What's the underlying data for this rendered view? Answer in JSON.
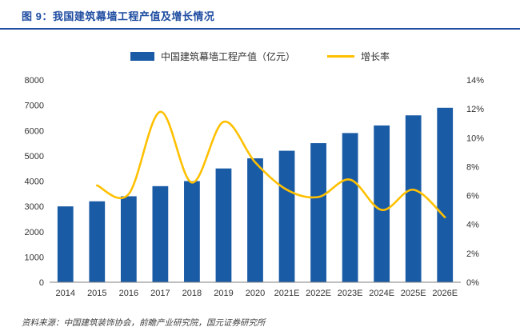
{
  "page": {
    "title": "图 9：我国建筑幕墙工程产值及增长情况",
    "source_note": "资料来源：中国建筑装饰协会，前瞻产业研究院，国元证券研究所"
  },
  "colors": {
    "title_blue": "#1F4DA1",
    "bar_blue": "#1A5BA6",
    "line_yellow": "#FFC000",
    "axis_text": "#333333",
    "axis_line": "#7F7F7F"
  },
  "legend": {
    "bar_label": "中国建筑幕墙工程产值（亿元）",
    "line_label": "增长率"
  },
  "chart_data": {
    "type": "combo",
    "categories": [
      "2014",
      "2015",
      "2016",
      "2017",
      "2018",
      "2019",
      "2020",
      "2021E",
      "2022E",
      "2023E",
      "2024E",
      "2025E",
      "2026E"
    ],
    "series": [
      {
        "name": "中国建筑幕墙工程产值（亿元）",
        "type": "bar",
        "axis": "left",
        "color": "#1A5BA6",
        "values": [
          3000,
          3200,
          3400,
          3800,
          4000,
          4500,
          4900,
          5200,
          5500,
          5900,
          6200,
          6600,
          6900
        ]
      },
      {
        "name": "增长率",
        "type": "line",
        "axis": "right",
        "color": "#FFC000",
        "values": [
          null,
          6.7,
          6.1,
          11.8,
          6.9,
          11.1,
          8.3,
          6.4,
          5.9,
          7.1,
          5.0,
          6.4,
          4.5
        ]
      }
    ],
    "left_axis": {
      "min": 0,
      "max": 8000,
      "step": 1000
    },
    "right_axis": {
      "min": 0,
      "max": 14,
      "step": 2,
      "suffix": "%"
    },
    "grid": false,
    "legend_position": "top-center"
  }
}
